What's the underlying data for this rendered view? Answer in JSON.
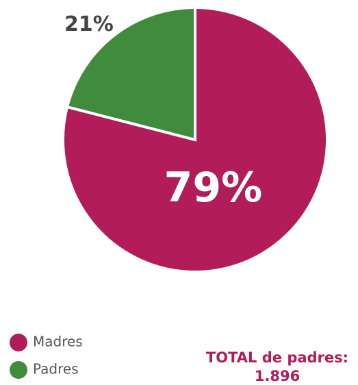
{
  "chart_data": {
    "type": "pie",
    "categories": [
      "Madres",
      "Padres"
    ],
    "values": [
      79,
      21
    ],
    "value_labels": [
      "79%",
      "21%"
    ],
    "colors": [
      "#b21c5a",
      "#418b3d"
    ],
    "legend": "bottom-left",
    "annotation": {
      "title": "TOTAL de padres:",
      "text": "1.896"
    }
  }
}
